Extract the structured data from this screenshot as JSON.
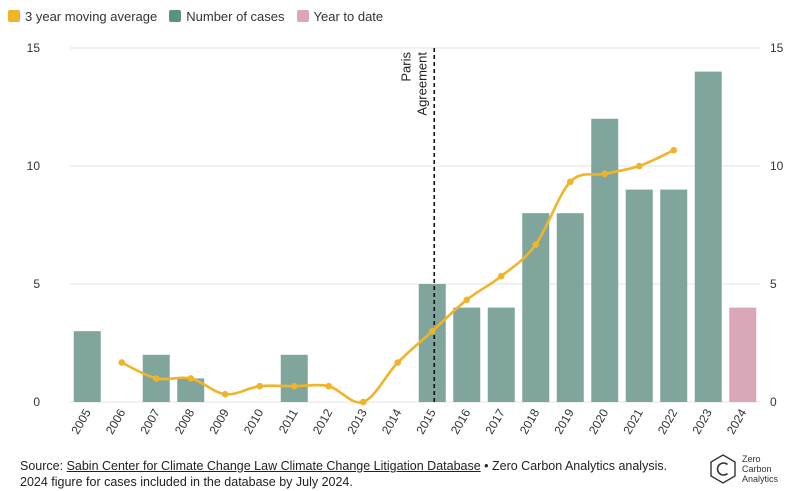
{
  "legend": {
    "items": [
      {
        "label": "3 year moving average",
        "color": "#f0b429"
      },
      {
        "label": "Number of cases",
        "color": "#5e8f84"
      },
      {
        "label": "Year to date",
        "color": "#d9a7b8"
      }
    ]
  },
  "chart_data": {
    "type": "bar",
    "categories": [
      "2005",
      "2006",
      "2007",
      "2008",
      "2009",
      "2010",
      "2011",
      "2012",
      "2013",
      "2014",
      "2015",
      "2016",
      "2017",
      "2018",
      "2019",
      "2020",
      "2021",
      "2022",
      "2023",
      "2024"
    ],
    "series": [
      {
        "name": "Number of cases",
        "type": "bar",
        "color": "#7fa59c",
        "values": [
          3,
          0,
          2,
          1,
          0,
          0,
          2,
          0,
          0,
          0,
          5,
          4,
          4,
          8,
          8,
          12,
          9,
          9,
          14,
          null
        ]
      },
      {
        "name": "Year to date",
        "type": "bar",
        "color": "#d9a7b8",
        "values": [
          null,
          null,
          null,
          null,
          null,
          null,
          null,
          null,
          null,
          null,
          null,
          null,
          null,
          null,
          null,
          null,
          null,
          null,
          null,
          4
        ]
      },
      {
        "name": "3 year moving average",
        "type": "line",
        "color": "#f0b429",
        "values": [
          null,
          1.67,
          1,
          1,
          0.33,
          0.67,
          0.67,
          0.67,
          0,
          1.67,
          3,
          4.33,
          5.33,
          6.67,
          9.33,
          9.67,
          10,
          10.67,
          null,
          null
        ]
      }
    ],
    "ylim": [
      0,
      15
    ],
    "yticks": [
      0,
      5,
      10,
      15
    ],
    "annotation": {
      "year": "2015",
      "text_line1": "Paris",
      "text_line2": "Agreement"
    },
    "grid": "horizontal"
  },
  "footer": {
    "source_prefix": "Source: ",
    "source_link": "Sabin Center for Climate Change Law Climate Change Litigation Database",
    "source_suffix": " • Zero Carbon Analytics analysis.",
    "note": "2024 figure for cases included in the database by July 2024."
  },
  "logo": {
    "line1": "Zero",
    "line2": "Carbon",
    "line3": "Analytics"
  }
}
